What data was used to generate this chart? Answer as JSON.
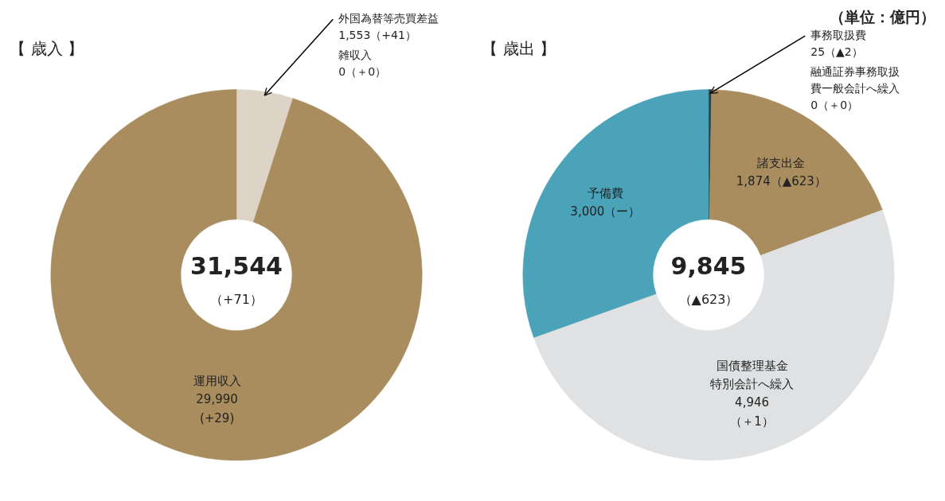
{
  "chart_data": [
    {
      "type": "donut",
      "title": "【 歳入 】",
      "categories": [
        "外国為替等売買差益",
        "雑収入",
        "運用収入"
      ],
      "values": [
        1553,
        0,
        29990
      ],
      "value_labels": [
        "1,553（+41）",
        "0（＋0）",
        "29,990\n(+29)"
      ],
      "colors": [
        "#ddd3c6",
        "#6b5a40",
        "#a98d5f"
      ],
      "annotations": [
        "31,544",
        "（+71）"
      ]
    },
    {
      "type": "donut",
      "title": "【 歳出 】",
      "categories": [
        "事務取扱費",
        "融通証券事務取扱費一般会計へ繰入",
        "諸支出金",
        "国債整理基金特別会計へ繰入",
        "予備費"
      ],
      "values": [
        25,
        0,
        1874,
        4946,
        3000
      ],
      "value_labels": [
        "25（▲2）",
        "0（＋0）",
        "1,874（▲623）",
        "4,946\n（＋1）",
        "3,000（ー）"
      ],
      "colors": [
        "#24464e",
        "#555555",
        "#a98d5f",
        "#dfe1e3",
        "#4aa3b8"
      ],
      "annotations": [
        "9,845",
        "（▲623）",
        "（単位：億円）"
      ]
    }
  ]
}
